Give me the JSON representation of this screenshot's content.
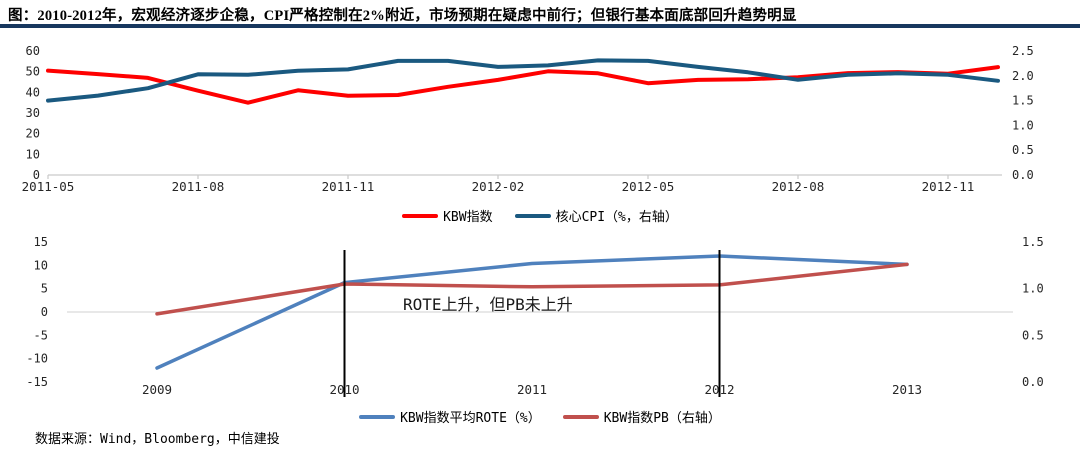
{
  "title": "图：2010-2012年，宏观经济逐步企稳，CPI严格控制在2%附近，市场预期在疑虑中前行；但银行基本面底部回升趋势明显",
  "footer": "数据来源：Wind，Bloomberg，中信建投",
  "colors": {
    "divider": "#17375E",
    "axis_line": "#C9C9C9",
    "gridline": "#D9D9D9",
    "tick_text": "#262626",
    "vline": "#000000",
    "annotation_text": "#1A1A1A"
  },
  "chart_data": [
    {
      "type": "line",
      "title": "",
      "x": [
        "2011-05",
        "2011-06",
        "2011-07",
        "2011-08",
        "2011-09",
        "2011-10",
        "2011-11",
        "2011-12",
        "2012-01",
        "2012-02",
        "2012-03",
        "2012-04",
        "2012-05",
        "2012-06",
        "2012-07",
        "2012-08",
        "2012-09",
        "2012-10",
        "2012-11",
        "2012-12"
      ],
      "x_labels": [
        "2011-05",
        "2011-08",
        "2011-11",
        "2012-02",
        "2012-05",
        "2012-08",
        "2012-11"
      ],
      "x_label_indices": [
        0,
        3,
        6,
        9,
        12,
        15,
        18
      ],
      "left_axis": {
        "min": 0,
        "max": 60,
        "ticks": [
          0,
          10,
          20,
          30,
          40,
          50,
          60
        ],
        "tick_labels": [
          "0",
          "10",
          "20",
          "30",
          "40",
          "50",
          "60"
        ]
      },
      "right_axis": {
        "min": 0,
        "max": 2.5,
        "ticks": [
          0,
          0.5,
          1,
          1.5,
          2,
          2.5
        ],
        "tick_labels": [
          "0.0",
          "0.5",
          "1.0",
          "1.5",
          "2.0",
          "2.5"
        ]
      },
      "grid": "off",
      "legend_position": "bottom-center",
      "series": [
        {
          "name": "KBW指数",
          "axis": "left",
          "color": "#FE0000",
          "values": [
            50.5,
            48.8,
            47.0,
            40.8,
            35.0,
            41.0,
            38.3,
            38.7,
            42.7,
            46.0,
            50.2,
            49.2,
            44.4,
            46.0,
            46.3,
            47.3,
            49.3,
            49.8,
            49.0,
            52.2
          ]
        },
        {
          "name": "核心CPI（%，右轴）",
          "axis": "right",
          "color": "#1A5980",
          "values": [
            1.5,
            1.6,
            1.75,
            2.03,
            2.02,
            2.1,
            2.13,
            2.3,
            2.3,
            2.18,
            2.21,
            2.31,
            2.3,
            2.18,
            2.07,
            1.92,
            2.02,
            2.05,
            2.02,
            1.9
          ]
        }
      ]
    },
    {
      "type": "line",
      "title": "",
      "x": [
        "2009",
        "2010",
        "2011",
        "2012",
        "2013"
      ],
      "x_labels": [
        "2009",
        "2010",
        "2011",
        "2012",
        "2013"
      ],
      "x_label_indices": [
        0,
        1,
        2,
        3,
        4
      ],
      "left_axis": {
        "min": -15,
        "max": 15,
        "ticks": [
          -15,
          -10,
          -5,
          0,
          5,
          10,
          15
        ],
        "tick_labels": [
          "-15",
          "-10",
          "-5",
          "0",
          "5",
          "10",
          "15"
        ]
      },
      "right_axis": {
        "min": 0,
        "max": 1.5,
        "ticks": [
          0,
          0.5,
          1,
          1.5
        ],
        "tick_labels": [
          "0.0",
          "0.5",
          "1.0",
          "1.5"
        ]
      },
      "grid": "zero-line-only",
      "legend_position": "bottom-center",
      "zero_gridline": true,
      "vline_indices": [
        1,
        3
      ],
      "annotation": "ROTE上升，但PB未上升",
      "series": [
        {
          "name": "KBW指数平均ROTE（%）",
          "axis": "left",
          "color": "#4F81BD",
          "values": [
            -12.0,
            6.3,
            10.4,
            12.0,
            10.2
          ]
        },
        {
          "name": "KBW指数PB（右轴）",
          "axis": "right",
          "color": "#C0504D",
          "values": [
            0.73,
            1.05,
            1.02,
            1.04,
            1.26
          ]
        }
      ]
    }
  ]
}
